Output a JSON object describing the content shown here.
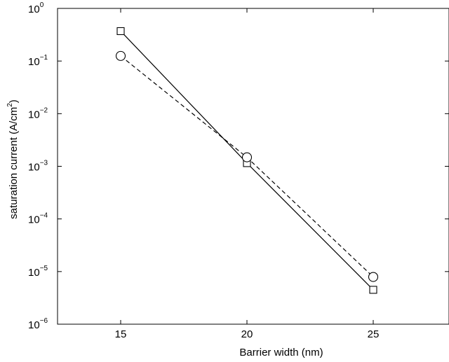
{
  "chart_data": {
    "type": "line",
    "xlabel": "Barrier width (nm)",
    "ylabel_main": "saturation current (A/cm",
    "ylabel_sup": "2",
    "ylabel_close": ")",
    "xlim": [
      12.5,
      28
    ],
    "ylim": [
      1e-06,
      1
    ],
    "yscale": "log",
    "grid": false,
    "x_ticks": [
      15,
      20,
      25
    ],
    "x_tick_labels": [
      "15",
      "20",
      "25"
    ],
    "y_ticks": [
      1e-06,
      1e-05,
      0.0001,
      0.001,
      0.01,
      0.1,
      1
    ],
    "y_tick_base": "10",
    "y_tick_exponents": [
      "−6",
      "−5",
      "−4",
      "−3",
      "−2",
      "−1",
      "0"
    ],
    "series": [
      {
        "marker": "square",
        "line_style": "solid",
        "color": "#000000",
        "x": [
          15,
          20,
          25
        ],
        "y": [
          0.37,
          0.00115,
          4.5e-06
        ]
      },
      {
        "marker": "circle",
        "line_style": "dashed",
        "color": "#000000",
        "x": [
          15,
          20,
          25
        ],
        "y": [
          0.125,
          0.00148,
          7.9e-06
        ]
      }
    ]
  }
}
